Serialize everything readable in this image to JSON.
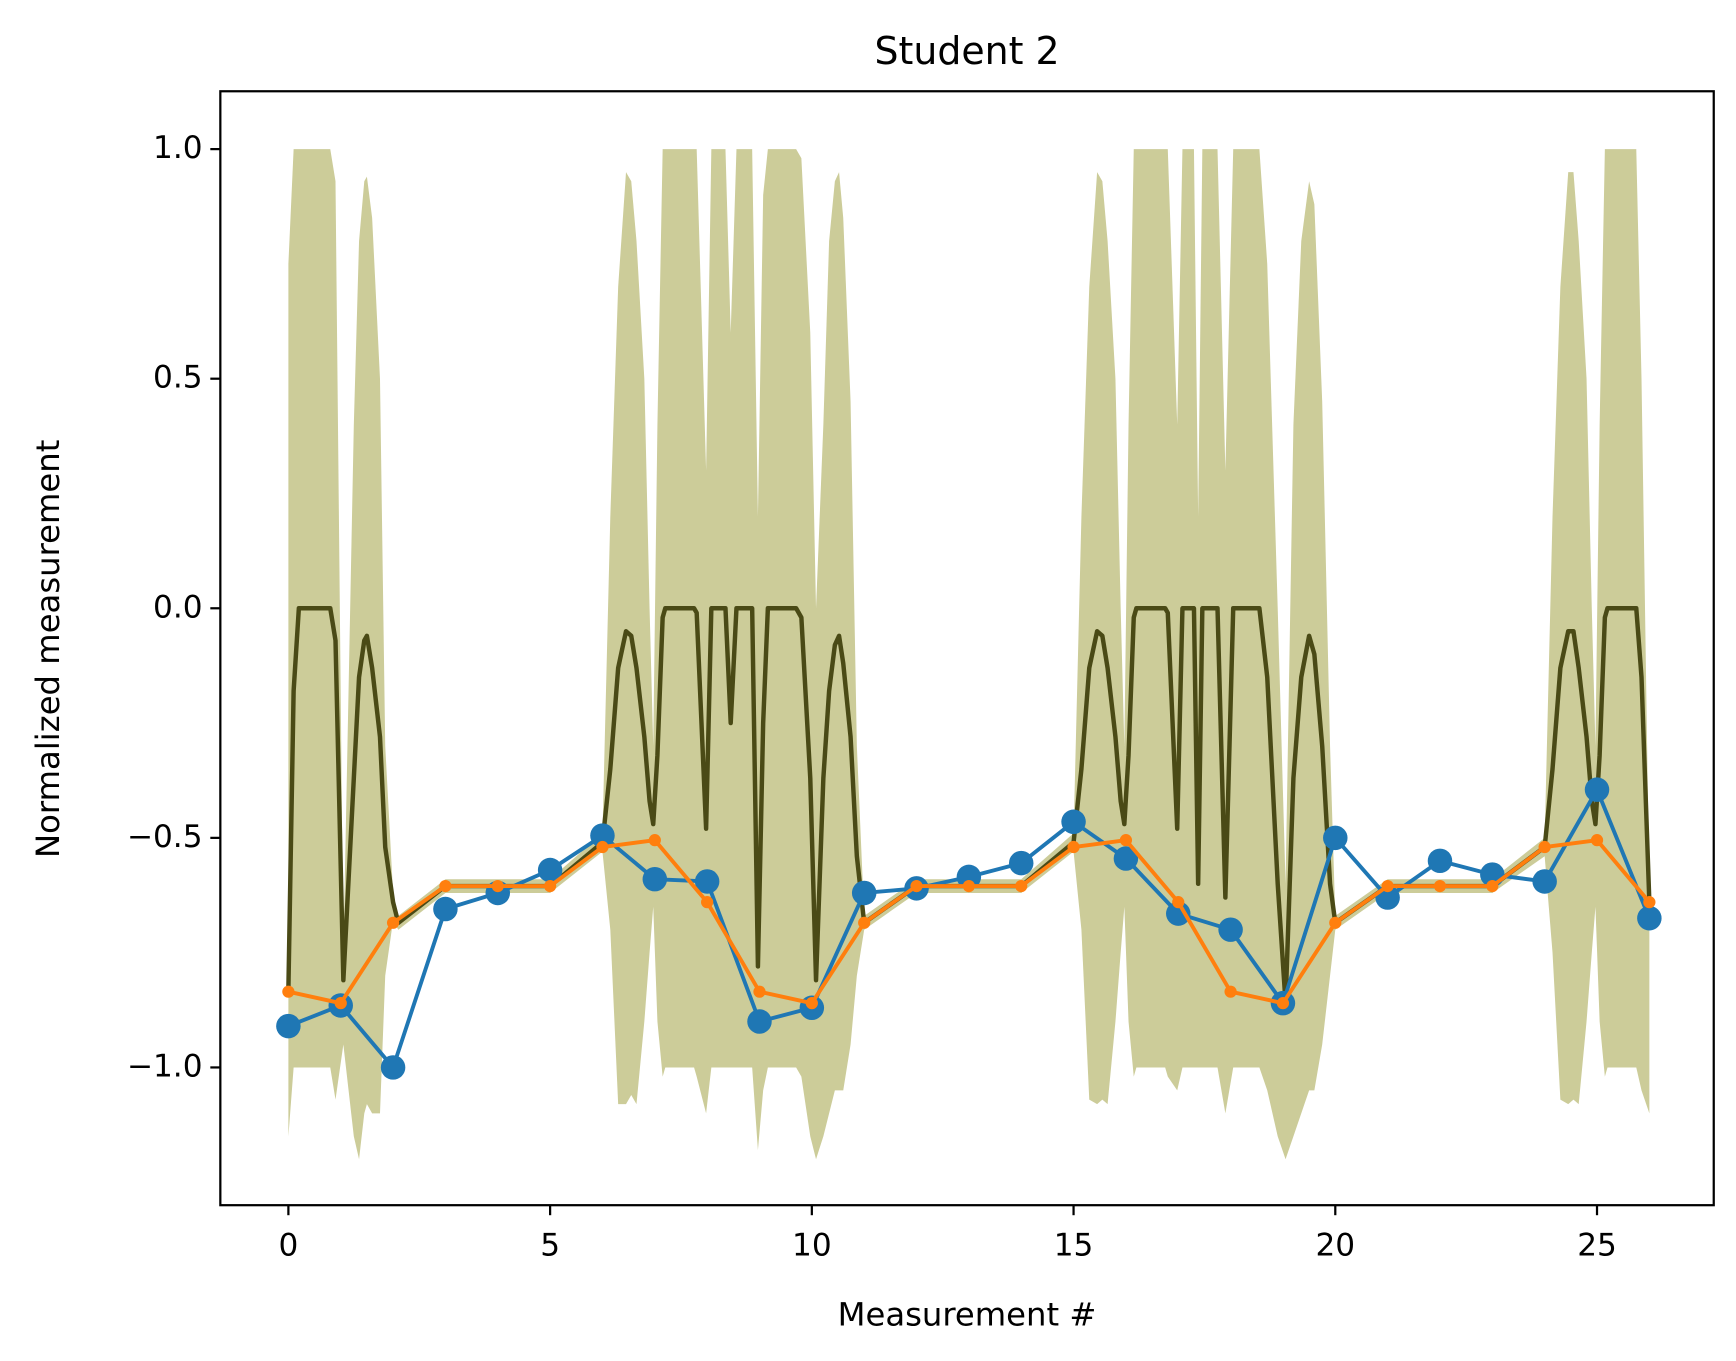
{
  "chart_data": {
    "type": "line",
    "title": "Student 2",
    "x_label": "Measurement #",
    "y_label": "Normalized measurement",
    "xlim": [
      -1.3,
      27.23
    ],
    "ylim": [
      -1.3,
      1.126
    ],
    "xticks": [
      0,
      5,
      10,
      15,
      20,
      25
    ],
    "yticks": [
      {
        "value": -1.0,
        "label": "−1.0"
      },
      {
        "value": -0.5,
        "label": "−0.5"
      },
      {
        "value": 0.0,
        "label": "0.0"
      },
      {
        "value": 0.5,
        "label": "0.5"
      },
      {
        "value": 1.0,
        "label": "1.0"
      }
    ],
    "grid": false,
    "series": [
      {
        "color": "#cccc99",
        "kind": "band",
        "x": [
          0,
          0.1,
          0.2,
          0.8,
          0.9,
          1.05,
          1.25,
          1.35,
          1.45,
          1.5,
          1.6,
          1.75,
          1.85,
          2.0,
          2.1,
          3,
          5,
          6,
          6.15,
          6.3,
          6.45,
          6.55,
          6.65,
          6.8,
          6.9,
          6.97,
          7.05,
          7.15,
          7.2,
          7.75,
          7.8,
          7.98,
          8.08,
          8.35,
          8.45,
          8.56,
          8.86,
          8.97,
          9.07,
          9.16,
          9.7,
          9.8,
          9.97,
          10.08,
          10.22,
          10.33,
          10.44,
          10.52,
          10.6,
          10.74,
          10.86,
          11,
          12,
          14,
          15,
          15.15,
          15.3,
          15.45,
          15.55,
          15.65,
          15.8,
          15.9,
          15.97,
          16.05,
          16.15,
          16.2,
          16.75,
          16.8,
          16.98,
          17.08,
          17.3,
          17.38,
          17.46,
          17.75,
          17.9,
          18.05,
          18.55,
          18.7,
          18.9,
          19.05,
          19.2,
          19.35,
          19.5,
          19.6,
          19.75,
          19.9,
          20,
          21,
          23,
          24,
          24.15,
          24.3,
          24.45,
          24.55,
          24.65,
          24.8,
          24.9,
          24.97,
          25.05,
          25.15,
          25.2,
          25.75,
          25.85,
          26
        ],
        "lower": [
          -1.15,
          -1.0,
          -1.0,
          -1.0,
          -1.07,
          -0.95,
          -1.15,
          -1.2,
          -1.1,
          -1.08,
          -1.1,
          -1.1,
          -0.8,
          -0.68,
          -0.7,
          -0.62,
          -0.62,
          -0.53,
          -0.7,
          -1.08,
          -1.08,
          -1.06,
          -1.08,
          -0.9,
          -0.75,
          -0.65,
          -0.9,
          -1.02,
          -1.0,
          -1.0,
          -1.02,
          -1.1,
          -1.0,
          -1.0,
          -1.0,
          -1.0,
          -1.0,
          -1.18,
          -1.05,
          -1.0,
          -1.0,
          -1.02,
          -1.15,
          -1.2,
          -1.15,
          -1.1,
          -1.05,
          -1.05,
          -1.05,
          -0.95,
          -0.8,
          -0.7,
          -0.62,
          -0.62,
          -0.53,
          -0.7,
          -1.07,
          -1.08,
          -1.07,
          -1.08,
          -0.9,
          -0.75,
          -0.65,
          -0.9,
          -1.02,
          -1.0,
          -1.0,
          -1.02,
          -1.05,
          -1.0,
          -1.0,
          -1.0,
          -1.0,
          -1.0,
          -1.1,
          -1.0,
          -1.0,
          -1.05,
          -1.15,
          -1.2,
          -1.15,
          -1.1,
          -1.05,
          -1.05,
          -0.95,
          -0.8,
          -0.7,
          -0.62,
          -0.62,
          -0.54,
          -0.75,
          -1.07,
          -1.08,
          -1.07,
          -1.08,
          -0.9,
          -0.75,
          -0.65,
          -0.9,
          -1.02,
          -1.0,
          -1.0,
          -1.05,
          -1.1
        ],
        "upper": [
          0.75,
          1.0,
          1.0,
          1.0,
          0.93,
          -0.75,
          0.4,
          0.8,
          0.93,
          0.94,
          0.85,
          0.5,
          -0.3,
          -0.62,
          -0.67,
          -0.59,
          -0.59,
          -0.49,
          0.2,
          0.7,
          0.95,
          0.93,
          0.8,
          0.5,
          0.0,
          -0.3,
          0.4,
          1.0,
          1.0,
          1.0,
          1.0,
          0.3,
          1.0,
          1.0,
          0.6,
          1.0,
          1.0,
          0.2,
          0.9,
          1.0,
          1.0,
          0.98,
          0.6,
          0.0,
          0.4,
          0.8,
          0.93,
          0.95,
          0.85,
          0.45,
          -0.3,
          -0.67,
          -0.59,
          -0.59,
          -0.49,
          0.2,
          0.7,
          0.95,
          0.93,
          0.8,
          0.5,
          0.0,
          -0.3,
          0.4,
          1.0,
          1.0,
          1.0,
          1.0,
          0.4,
          1.0,
          1.0,
          0.2,
          1.0,
          1.0,
          0.3,
          1.0,
          1.0,
          0.75,
          0.0,
          -0.6,
          0.4,
          0.8,
          0.93,
          0.88,
          0.45,
          -0.3,
          -0.67,
          -0.59,
          -0.59,
          -0.5,
          0.2,
          0.7,
          0.95,
          0.95,
          0.8,
          0.5,
          0.0,
          -0.3,
          0.4,
          1.0,
          1.0,
          1.0,
          0.5,
          -0.62
        ]
      },
      {
        "color": "#4a4a16",
        "kind": "line",
        "x": [
          0,
          0.1,
          0.2,
          0.8,
          0.9,
          1.05,
          1.25,
          1.35,
          1.45,
          1.5,
          1.6,
          1.75,
          1.85,
          2.0,
          2.1,
          3,
          5,
          6,
          6.15,
          6.3,
          6.45,
          6.55,
          6.65,
          6.8,
          6.9,
          6.97,
          7.05,
          7.15,
          7.2,
          7.75,
          7.8,
          7.98,
          8.08,
          8.35,
          8.45,
          8.56,
          8.86,
          8.97,
          9.07,
          9.16,
          9.7,
          9.8,
          9.97,
          10.08,
          10.22,
          10.33,
          10.44,
          10.52,
          10.6,
          10.74,
          10.86,
          11,
          12,
          14,
          15,
          15.15,
          15.3,
          15.45,
          15.55,
          15.65,
          15.8,
          15.9,
          15.97,
          16.05,
          16.15,
          16.2,
          16.75,
          16.8,
          16.98,
          17.08,
          17.3,
          17.38,
          17.46,
          17.75,
          17.9,
          18.05,
          18.55,
          18.7,
          18.9,
          19.05,
          19.2,
          19.35,
          19.5,
          19.6,
          19.75,
          19.9,
          20,
          21,
          23,
          24,
          24.15,
          24.3,
          24.45,
          24.55,
          24.65,
          24.8,
          24.9,
          24.97,
          25.05,
          25.15,
          25.2,
          25.75,
          25.85,
          26
        ],
        "values": [
          -0.83,
          -0.18,
          0,
          0,
          -0.07,
          -0.81,
          -0.37,
          -0.15,
          -0.07,
          -0.06,
          -0.13,
          -0.28,
          -0.52,
          -0.64,
          -0.685,
          -0.605,
          -0.605,
          -0.51,
          -0.35,
          -0.13,
          -0.05,
          -0.06,
          -0.13,
          -0.28,
          -0.42,
          -0.47,
          -0.32,
          -0.02,
          0,
          0,
          -0.01,
          -0.48,
          0,
          0,
          -0.25,
          0,
          0,
          -0.78,
          -0.25,
          0,
          0,
          -0.02,
          -0.37,
          -0.81,
          -0.37,
          -0.18,
          -0.08,
          -0.06,
          -0.12,
          -0.28,
          -0.54,
          -0.685,
          -0.605,
          -0.605,
          -0.51,
          -0.35,
          -0.13,
          -0.05,
          -0.06,
          -0.13,
          -0.28,
          -0.42,
          -0.47,
          -0.32,
          -0.02,
          0,
          0,
          -0.01,
          -0.48,
          0,
          0,
          -0.6,
          0,
          0,
          -0.63,
          0,
          0,
          -0.15,
          -0.6,
          -0.86,
          -0.37,
          -0.15,
          -0.06,
          -0.1,
          -0.3,
          -0.6,
          -0.685,
          -0.605,
          -0.605,
          -0.52,
          -0.35,
          -0.13,
          -0.05,
          -0.05,
          -0.13,
          -0.28,
          -0.42,
          -0.47,
          -0.32,
          -0.02,
          0,
          0,
          -0.15,
          -0.64
        ]
      },
      {
        "color": "#1f77b4",
        "kind": "line",
        "marker_size": 11,
        "x": [
          0,
          1,
          2,
          3,
          4,
          5,
          6,
          7,
          8,
          9,
          10,
          11,
          12,
          13,
          14,
          15,
          16,
          17,
          18,
          19,
          20,
          21,
          22,
          23,
          24,
          25,
          26
        ],
        "values": [
          -0.91,
          -0.865,
          -1.0,
          -0.655,
          -0.62,
          -0.57,
          -0.495,
          -0.59,
          -0.595,
          -0.9,
          -0.87,
          -0.62,
          -0.61,
          -0.585,
          -0.555,
          -0.465,
          -0.545,
          -0.665,
          -0.7,
          -0.86,
          -0.5,
          -0.63,
          -0.55,
          -0.58,
          -0.595,
          -0.395,
          -0.675
        ]
      },
      {
        "color": "#ff7f0e",
        "kind": "line",
        "marker_size": 5.5,
        "x": [
          0,
          1,
          2,
          3,
          4,
          5,
          6,
          7,
          8,
          9,
          10,
          11,
          12,
          13,
          14,
          15,
          16,
          17,
          18,
          19,
          20,
          21,
          22,
          23,
          24,
          25,
          26
        ],
        "values": [
          -0.835,
          -0.86,
          -0.685,
          -0.605,
          -0.605,
          -0.605,
          -0.52,
          -0.505,
          -0.64,
          -0.835,
          -0.86,
          -0.685,
          -0.605,
          -0.605,
          -0.605,
          -0.52,
          -0.505,
          -0.64,
          -0.835,
          -0.86,
          -0.685,
          -0.605,
          -0.605,
          -0.605,
          -0.52,
          -0.505,
          -0.64
        ]
      }
    ]
  }
}
